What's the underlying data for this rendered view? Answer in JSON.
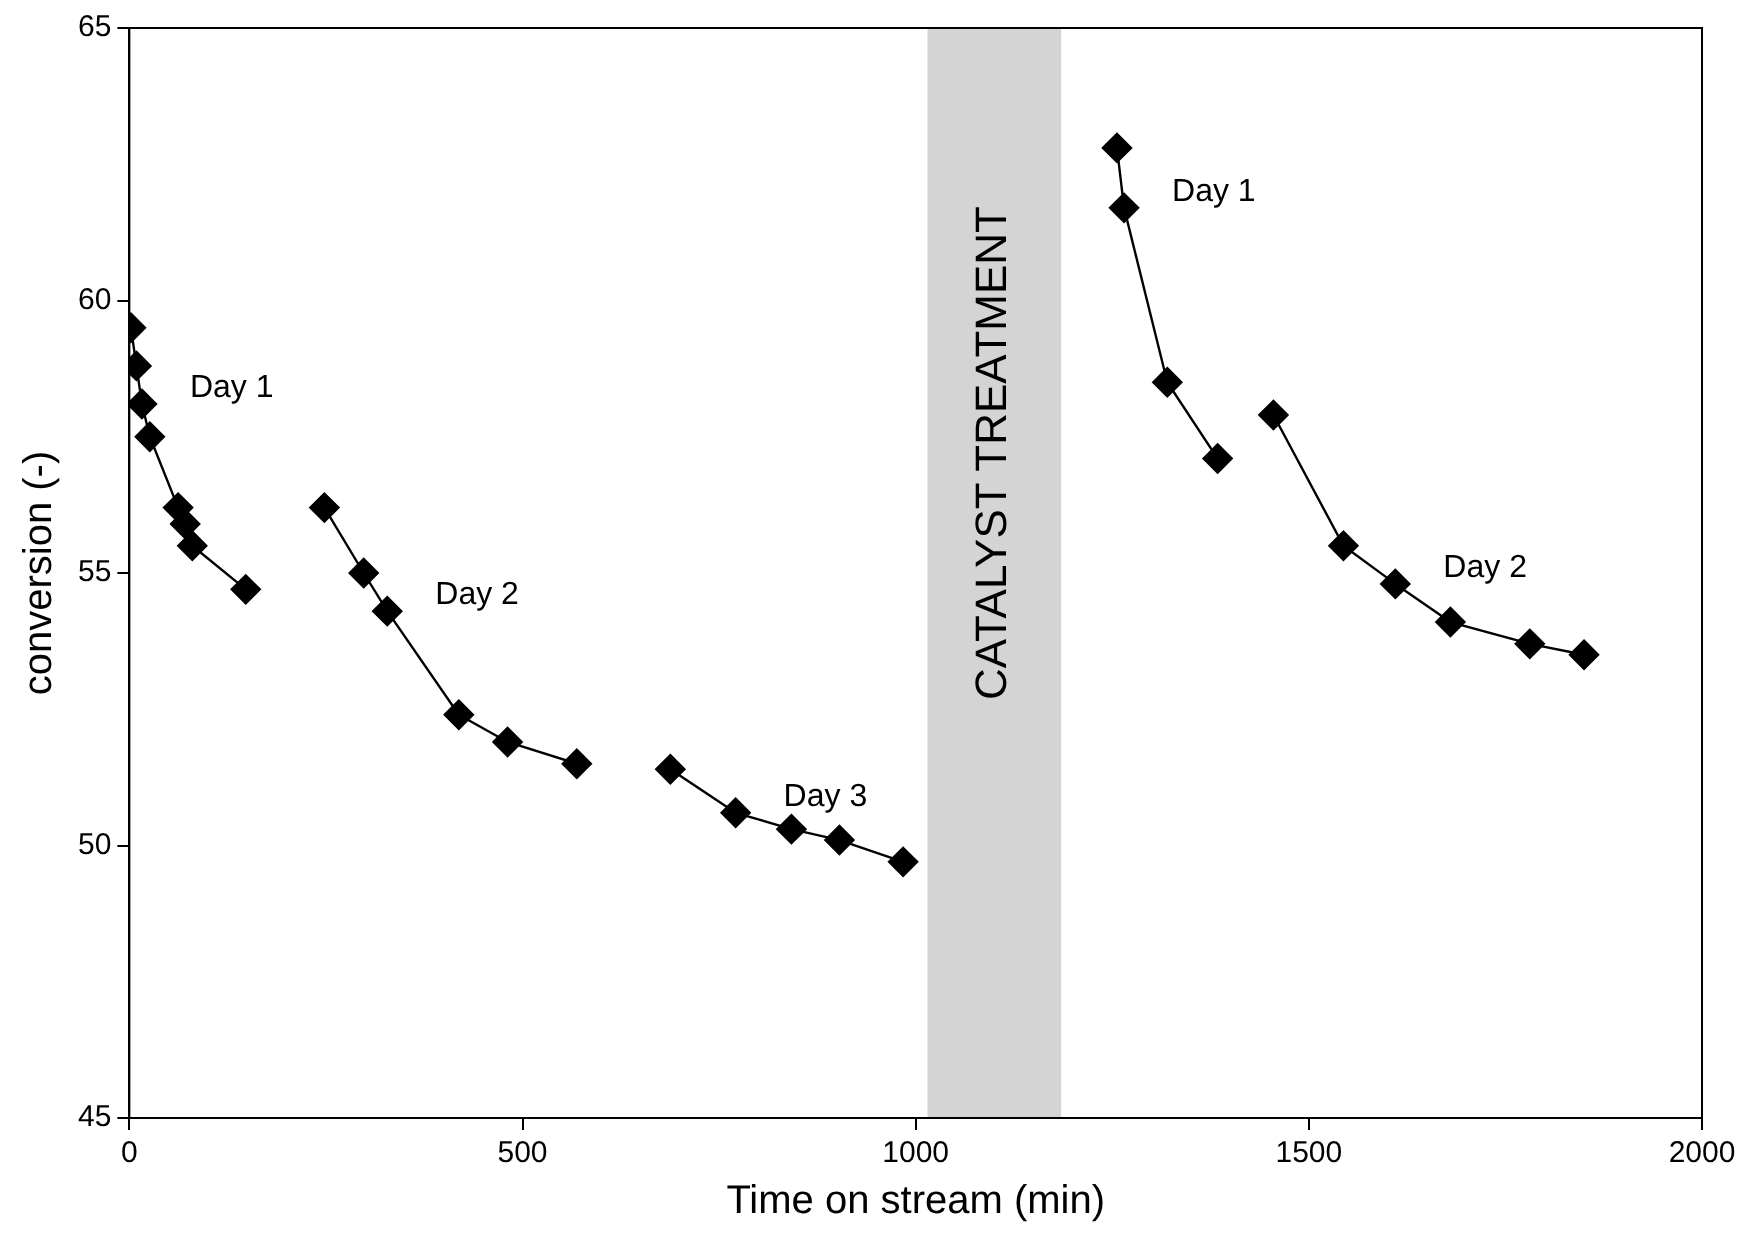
{
  "chart_data": {
    "type": "line",
    "xlabel": "Time on stream (min)",
    "ylabel": "conversion (-)",
    "xlim": [
      0,
      2000
    ],
    "xticks": [
      0,
      500,
      1000,
      1500,
      2000
    ],
    "ylim": [
      45,
      65
    ],
    "yticks": [
      45,
      50,
      55,
      60,
      65
    ],
    "grid": false,
    "legend": false,
    "marker": "diamond",
    "line_style": "solid",
    "series": [
      {
        "name": "Day 1",
        "color": "#000000",
        "x": [
          2,
          9,
          16,
          26,
          62,
          71,
          80,
          148
        ],
        "values": [
          59.5,
          58.8,
          58.1,
          57.5,
          56.2,
          55.9,
          55.5,
          54.7
        ]
      },
      {
        "name": "Day 2",
        "color": "#000000",
        "x": [
          248,
          298,
          328,
          419,
          481,
          569
        ],
        "values": [
          56.2,
          55.0,
          54.3,
          52.4,
          51.9,
          51.5
        ]
      },
      {
        "name": "Day 3",
        "color": "#000000",
        "x": [
          688,
          771,
          842,
          903,
          984
        ],
        "values": [
          51.4,
          50.6,
          50.3,
          50.1,
          49.7
        ]
      },
      {
        "name": "Day 1",
        "color": "#000000",
        "x": [
          1256,
          1265,
          1320,
          1384
        ],
        "values": [
          62.8,
          61.7,
          58.5,
          57.1
        ]
      },
      {
        "name": "Day 2",
        "color": "#000000",
        "x": [
          1455,
          1544,
          1610,
          1680,
          1781,
          1850
        ],
        "values": [
          57.9,
          55.5,
          54.8,
          54.1,
          53.7,
          53.5
        ]
      }
    ],
    "bands": [
      {
        "axis": "x",
        "from": 1015,
        "to": 1185,
        "label": "CATALYST TREATMENT",
        "color": "#d4d4d4"
      }
    ]
  }
}
